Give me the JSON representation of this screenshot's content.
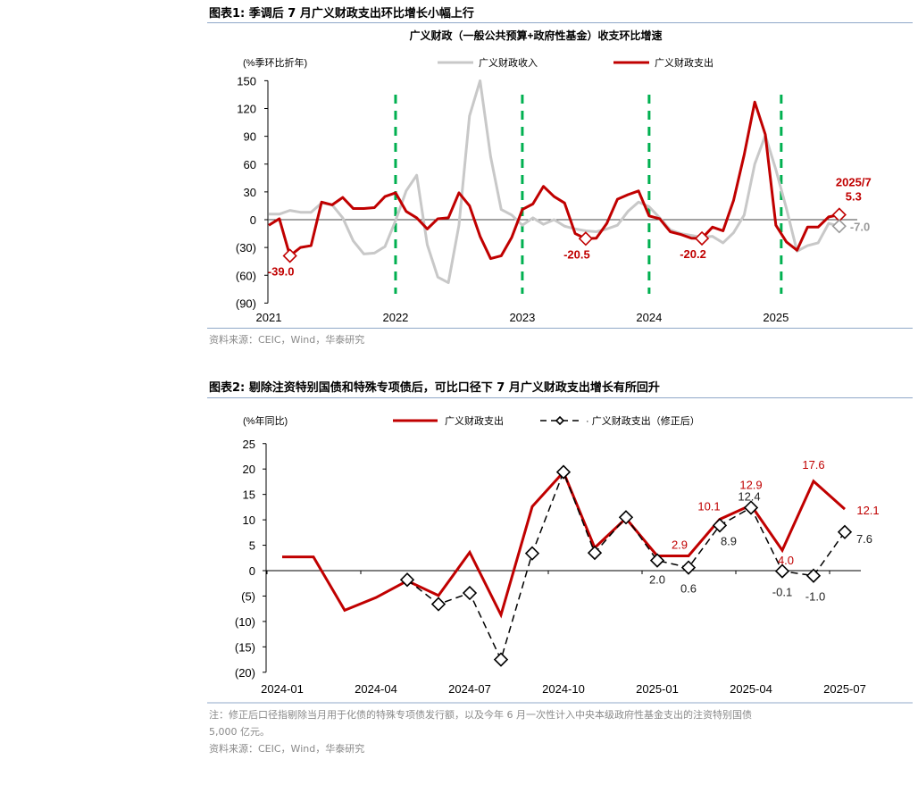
{
  "figure1": {
    "title": "图表1:  季调后 7 月广义财政支出环比增长小幅上行",
    "source": "资料来源：CEIC，Wind，华泰研究"
  },
  "figure2": {
    "title": "图表2:  剔除注资特别国债和特殊专项债后，可比口径下 7 月广义财政支出增长有所回升",
    "note_line1": "注：修正后口径指剔除当月用于化债的特殊专项债发行额，以及今年 6 月一次性计入中央本级政府性基金支出的注资特别国债",
    "note_line2": "5,000 亿元。",
    "source": "资料来源：CEIC，Wind，华泰研究"
  },
  "chart_data": [
    {
      "type": "line",
      "title": "广义财政（一般公共预算+政府性基金）收支环比增速",
      "ylabel": "(%季环比折年)",
      "ylim": [
        -90,
        150
      ],
      "yticks": [
        150,
        120,
        90,
        60,
        30,
        0,
        -30,
        -60,
        -90
      ],
      "ytick_labels": [
        "150",
        "120",
        "90",
        "60",
        "30",
        "0",
        "(30)",
        "(60)",
        "(90)"
      ],
      "xtick_labels": [
        "2021",
        "2022",
        "2023",
        "2024",
        "2025"
      ],
      "x_start": "2021-01",
      "frequency": "monthly",
      "vertical_markers": [
        "2022-01",
        "2023-01",
        "2024-01",
        "2025-01"
      ],
      "marker_color": "#00b050",
      "legend_position": "top",
      "series": [
        {
          "name": "广义财政收入",
          "color": "#c8c8c8",
          "values": [
            6,
            6,
            10,
            8,
            8,
            18,
            16,
            2,
            -23,
            -37,
            -36,
            -29,
            -1,
            31,
            48,
            -27,
            -62,
            -68,
            -6,
            112,
            150,
            68,
            11,
            5,
            -6,
            2,
            -5,
            0,
            -7,
            -10,
            -12,
            -13,
            -10,
            -6,
            9,
            19,
            14,
            2,
            -11,
            -15,
            -17,
            -19,
            -18,
            -25,
            -14,
            5,
            60,
            91,
            54,
            12,
            -34,
            -28,
            -25,
            -4,
            -7
          ]
        },
        {
          "name": "广义财政支出",
          "color": "#c00000",
          "values": [
            -6,
            1,
            -39,
            -30,
            -28,
            19,
            16,
            24,
            12,
            12,
            13,
            25,
            29,
            9,
            2,
            -10,
            1,
            2,
            29,
            15,
            -18,
            -42,
            -39,
            -19,
            11,
            17,
            36,
            25,
            18,
            -15,
            -20.5,
            -20,
            -4,
            22,
            27,
            31,
            4,
            1,
            -13,
            -16,
            -20,
            -20.2,
            -8,
            -12,
            21,
            70,
            127,
            92,
            -6,
            -24,
            -33,
            -8,
            -8,
            3,
            5.3
          ]
        }
      ],
      "annotations": [
        {
          "series": "广义财政支出",
          "x": "2021-03",
          "label": "-39.0"
        },
        {
          "series": "广义财政支出",
          "x": "2023-07",
          "label": "-20.5"
        },
        {
          "series": "广义财政支出",
          "x": "2024-06",
          "label": "-20.2"
        },
        {
          "series": "广义财政支出",
          "x": "2025-07",
          "label": "2025/7\n5.3"
        },
        {
          "series": "广义财政收入",
          "x": "2025-07",
          "label": "-7.0"
        }
      ]
    },
    {
      "type": "line",
      "ylabel": "(%年同比)",
      "ylim": [
        -20,
        25
      ],
      "yticks": [
        25,
        20,
        15,
        10,
        5,
        0,
        -5,
        -10,
        -15,
        -20
      ],
      "ytick_labels": [
        "25",
        "20",
        "15",
        "10",
        "5",
        "0",
        "(5)",
        "(10)",
        "(15)",
        "(20)"
      ],
      "categories": [
        "2024-01",
        "2024-02",
        "2024-03",
        "2024-04",
        "2024-05",
        "2024-06",
        "2024-07",
        "2024-08",
        "2024-09",
        "2024-10",
        "2024-11",
        "2024-12",
        "2025-01",
        "2025-02",
        "2025-03",
        "2025-04",
        "2025-05",
        "2025-06",
        "2025-07"
      ],
      "xtick_labels": [
        "2024-01",
        "2024-04",
        "2024-07",
        "2024-10",
        "2025-01",
        "2025-04",
        "2025-07"
      ],
      "legend_position": "top",
      "series": [
        {
          "name": "广义财政支出",
          "color": "#c00000",
          "values": [
            2.7,
            2.7,
            -7.8,
            -5.3,
            -2.0,
            -4.9,
            3.6,
            -8.7,
            12.6,
            19.4,
            4.5,
            10.3,
            2.9,
            2.9,
            10.1,
            12.9,
            4.0,
            17.6,
            12.1
          ],
          "labels": {
            "2025-02": "2.9",
            "2025-03": "10.1",
            "2025-04": "12.9",
            "2025-05": "4.0",
            "2025-06": "17.6",
            "2025-07": "12.1"
          }
        },
        {
          "name": "广义财政支出（修正后）",
          "color": "#000000",
          "values": [
            null,
            null,
            null,
            null,
            -1.8,
            -6.6,
            -4.4,
            -17.5,
            3.4,
            19.4,
            3.5,
            10.5,
            2.0,
            0.6,
            8.9,
            12.4,
            -0.1,
            -1.0,
            7.6
          ],
          "labels": {
            "2025-01": "2.0",
            "2025-02": "0.6",
            "2025-03": "8.9",
            "2025-04": "12.4",
            "2025-05": "-0.1",
            "2025-06": "-1.0",
            "2025-07": "7.6"
          }
        }
      ]
    }
  ]
}
